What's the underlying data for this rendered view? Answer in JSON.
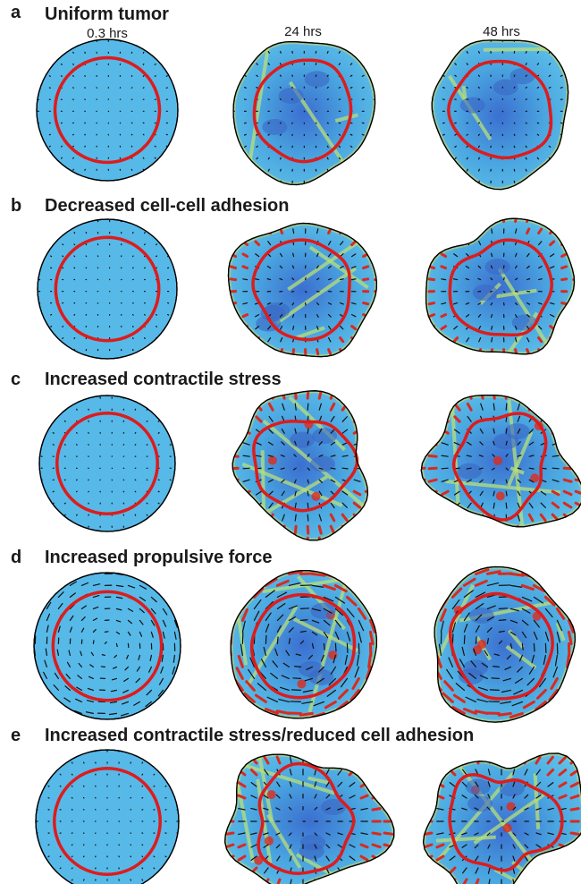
{
  "time_labels": [
    "0.3 hrs",
    "24 hrs",
    "48 hrs"
  ],
  "colors": {
    "tumor_fill": "#57b9e8",
    "field_dark": "#3a67c4",
    "field_mid": "#4aa6e0",
    "stress_yellow": "#e6e04a",
    "stress_green": "#b9df7a",
    "hotspot_red": "#e02a1a",
    "boundary_red": "#dd1c1c",
    "arrow_dark": "#111111",
    "arrow_red": "#d92a1e"
  },
  "panels": [
    {
      "letter": "a",
      "title": "Uniform tumor",
      "arrow_strength": "tiny",
      "deformation": "low"
    },
    {
      "letter": "b",
      "title": "Decreased cell-cell adhesion",
      "arrow_strength": "small",
      "deformation": "moderate"
    },
    {
      "letter": "c",
      "title": "Increased contractile stress",
      "arrow_strength": "medium",
      "deformation": "high"
    },
    {
      "letter": "d",
      "title": "Increased propulsive force",
      "arrow_strength": "large",
      "deformation": "moderate"
    },
    {
      "letter": "e",
      "title": "Increased contractile stress/reduced cell adhesion",
      "arrow_strength": "medium",
      "deformation": "very high"
    }
  ]
}
